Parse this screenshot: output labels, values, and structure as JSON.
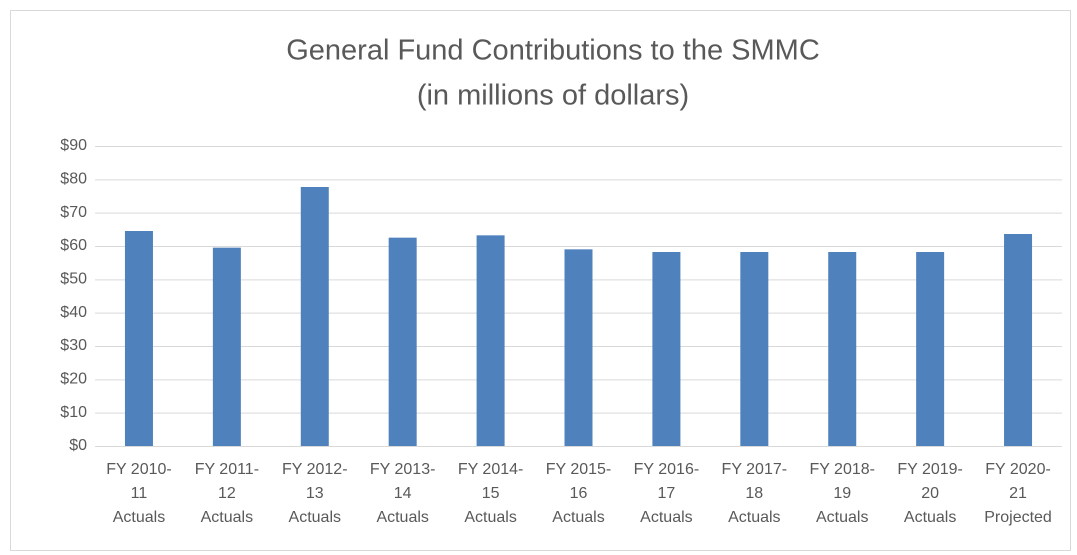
{
  "chart_data": {
    "type": "bar",
    "title": "General Fund Contributions to the SMMC",
    "subtitle": "(in millions of dollars)",
    "categories": [
      [
        "FY 2010-",
        "11",
        "Actuals"
      ],
      [
        "FY 2011-",
        "12",
        "Actuals"
      ],
      [
        "FY 2012-",
        "13",
        "Actuals"
      ],
      [
        "FY 2013-",
        "14",
        "Actuals"
      ],
      [
        "FY 2014-",
        "15",
        "Actuals"
      ],
      [
        "FY 2015-",
        "16",
        "Actuals"
      ],
      [
        "FY 2016-",
        "17",
        "Actuals"
      ],
      [
        "FY 2017-",
        "18",
        "Actuals"
      ],
      [
        "FY 2018-",
        "19",
        "Actuals"
      ],
      [
        "FY 2019-",
        "20",
        "Actuals"
      ],
      [
        "FY 2020-",
        "21",
        "Projected"
      ]
    ],
    "values": [
      64.5,
      59.5,
      77.7,
      62.5,
      63.2,
      59,
      58.2,
      58.2,
      58.2,
      58.2,
      63.6
    ],
    "color": "#4f81bd",
    "ylim": [
      0,
      90
    ],
    "yticks": [
      {
        "value": 0,
        "label": "$0"
      },
      {
        "value": 10,
        "label": "$10"
      },
      {
        "value": 20,
        "label": "$20"
      },
      {
        "value": 30,
        "label": "$30"
      },
      {
        "value": 40,
        "label": "$40"
      },
      {
        "value": 50,
        "label": "$50"
      },
      {
        "value": 60,
        "label": "$60"
      },
      {
        "value": 70,
        "label": "$70"
      },
      {
        "value": 80,
        "label": "$80"
      },
      {
        "value": 90,
        "label": "$90"
      }
    ],
    "grid": true
  }
}
